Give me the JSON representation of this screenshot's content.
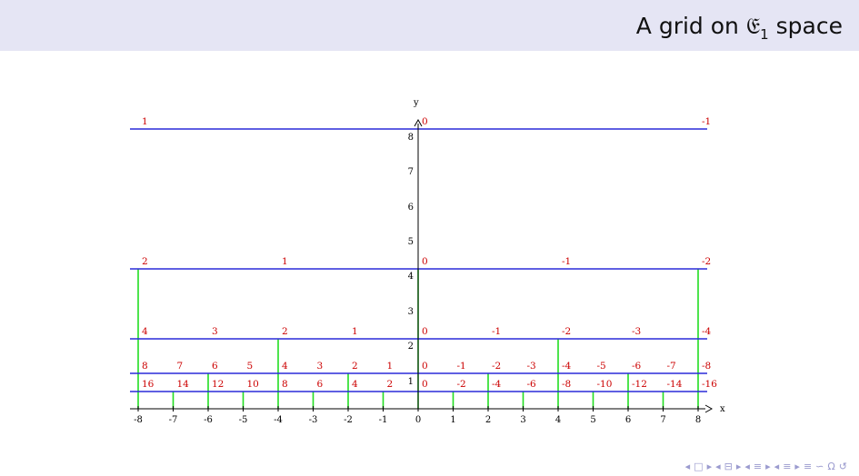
{
  "slide": {
    "title_prefix": "A grid on ",
    "title_symbol": "𝔈",
    "title_subscript": "1",
    "title_suffix": " space"
  },
  "colors": {
    "header_bg": "#e5e5f4",
    "horizontal_line": "#2a2ad8",
    "vertical_line": "#22dd22",
    "cell_label": "#cc0000",
    "axis": "#000000",
    "nav_icon": "#9b9bcf"
  },
  "chart_data": {
    "type": "diagram",
    "xlabel": "x",
    "ylabel": "y",
    "xlim": [
      -8,
      8
    ],
    "x_ticks": [
      "-8",
      "-7",
      "-6",
      "-5",
      "-4",
      "-3",
      "-2",
      "-1",
      "0",
      "1",
      "2",
      "3",
      "4",
      "5",
      "6",
      "7",
      "8"
    ],
    "y_ticks": [
      "1",
      "2",
      "3",
      "4",
      "5",
      "6",
      "7",
      "8"
    ],
    "levels": [
      {
        "y": 1,
        "x_lines": [
          -8,
          -7,
          -6,
          -5,
          -4,
          -3,
          -2,
          -1,
          0,
          1,
          2,
          3,
          4,
          5,
          6,
          7,
          8
        ],
        "labels": [
          "16",
          "14",
          "12",
          "10",
          "8",
          "6",
          "4",
          "2",
          "0",
          "-2",
          "-4",
          "-6",
          "-8",
          "-10",
          "-12",
          "-14",
          "-16"
        ]
      },
      {
        "y": 2,
        "x_lines": [
          -8,
          -6,
          -4,
          -2,
          0,
          2,
          4,
          6,
          8
        ],
        "labels": [
          "8",
          "7",
          "6",
          "5",
          "4",
          "3",
          "2",
          "1",
          "0",
          "-1",
          "-2",
          "-3",
          "-4",
          "-5",
          "-6",
          "-7",
          "-8"
        ]
      },
      {
        "y": 4,
        "x_lines": [
          -8,
          -4,
          0,
          4,
          8
        ],
        "labels": [
          "4",
          "3",
          "2",
          "1",
          "0",
          "-1",
          "-2",
          "-3",
          "-4"
        ]
      },
      {
        "y": 8,
        "x_lines": [
          -8,
          0,
          8
        ],
        "labels": [
          "2",
          "1",
          "0",
          "-1",
          "-2"
        ]
      },
      {
        "y": 16,
        "x_lines": [],
        "labels": [
          "1",
          "0",
          "-1"
        ]
      }
    ]
  },
  "nav_icons": [
    "◂",
    "□",
    "▸",
    "◂",
    "⊟",
    "▸",
    "◂",
    "≡",
    "▸",
    "◂",
    "≡",
    "▸",
    "≡",
    "∽",
    "Ω",
    "↺"
  ]
}
